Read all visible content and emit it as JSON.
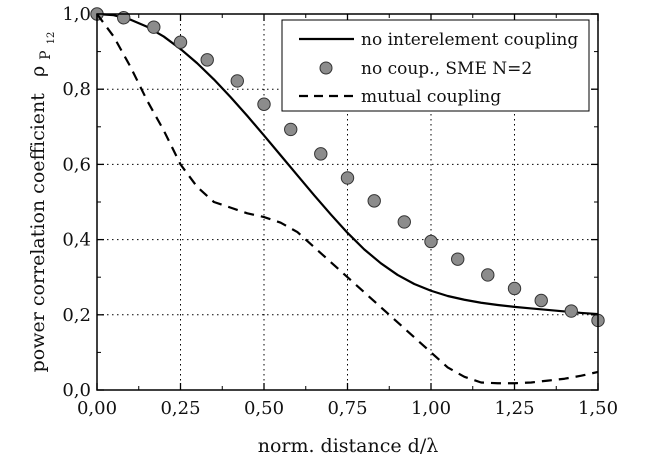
{
  "chart_data": {
    "type": "line",
    "xlabel": "norm. distance d/λ",
    "ylabel": "power correlation coefficient",
    "ylabel_symbol": {
      "base": "ρ",
      "sub": "P",
      "subsub": "12"
    },
    "xlim": [
      0,
      1.5
    ],
    "ylim": [
      0,
      1.0
    ],
    "xticks": [
      0.0,
      0.25,
      0.5,
      0.75,
      1.0,
      1.25,
      1.5
    ],
    "xtick_labels": [
      "0,00",
      "0,25",
      "0,50",
      "0,75",
      "1,00",
      "1,25",
      "1,50"
    ],
    "yticks": [
      0.0,
      0.2,
      0.4,
      0.6,
      0.8,
      1.0
    ],
    "ytick_labels": [
      "0,0",
      "0,2",
      "0,4",
      "0,6",
      "0,8",
      "1,0"
    ],
    "grid": true,
    "legend_position": "top-right",
    "series": [
      {
        "name": "no interelement coupling",
        "style": "solid",
        "color": "#000000",
        "x": [
          0.0,
          0.05,
          0.1,
          0.15,
          0.2,
          0.25,
          0.3,
          0.35,
          0.4,
          0.45,
          0.5,
          0.55,
          0.6,
          0.65,
          0.7,
          0.75,
          0.8,
          0.85,
          0.9,
          0.95,
          1.0,
          1.05,
          1.1,
          1.15,
          1.2,
          1.25,
          1.3,
          1.35,
          1.4,
          1.45,
          1.5
        ],
        "y": [
          1.0,
          0.997,
          0.985,
          0.966,
          0.94,
          0.907,
          0.869,
          0.826,
          0.779,
          0.729,
          0.677,
          0.624,
          0.571,
          0.518,
          0.467,
          0.418,
          0.374,
          0.337,
          0.306,
          0.282,
          0.264,
          0.25,
          0.24,
          0.232,
          0.226,
          0.221,
          0.217,
          0.213,
          0.209,
          0.205,
          0.202
        ]
      },
      {
        "name": "no coup., SME N=2",
        "style": "markers",
        "color": "#8c8c8c",
        "x": [
          0.0,
          0.08,
          0.17,
          0.25,
          0.33,
          0.42,
          0.5,
          0.58,
          0.67,
          0.75,
          0.83,
          0.92,
          1.0,
          1.08,
          1.17,
          1.25,
          1.33,
          1.42,
          1.5
        ],
        "y": [
          1.0,
          0.99,
          0.965,
          0.925,
          0.878,
          0.822,
          0.76,
          0.693,
          0.628,
          0.564,
          0.503,
          0.447,
          0.395,
          0.348,
          0.306,
          0.27,
          0.238,
          0.21,
          0.185
        ]
      },
      {
        "name": "mutual coupling",
        "style": "dashed",
        "color": "#000000",
        "x": [
          0.0,
          0.05,
          0.1,
          0.15,
          0.2,
          0.25,
          0.3,
          0.35,
          0.4,
          0.45,
          0.5,
          0.55,
          0.6,
          0.65,
          0.7,
          0.75,
          0.8,
          0.85,
          0.9,
          0.95,
          1.0,
          1.05,
          1.1,
          1.15,
          1.2,
          1.25,
          1.3,
          1.35,
          1.4,
          1.45,
          1.5
        ],
        "y": [
          1.0,
          0.94,
          0.86,
          0.77,
          0.69,
          0.6,
          0.54,
          0.5,
          0.485,
          0.47,
          0.46,
          0.445,
          0.42,
          0.38,
          0.34,
          0.3,
          0.26,
          0.22,
          0.18,
          0.14,
          0.1,
          0.06,
          0.035,
          0.02,
          0.018,
          0.018,
          0.02,
          0.025,
          0.03,
          0.038,
          0.048
        ]
      }
    ]
  }
}
